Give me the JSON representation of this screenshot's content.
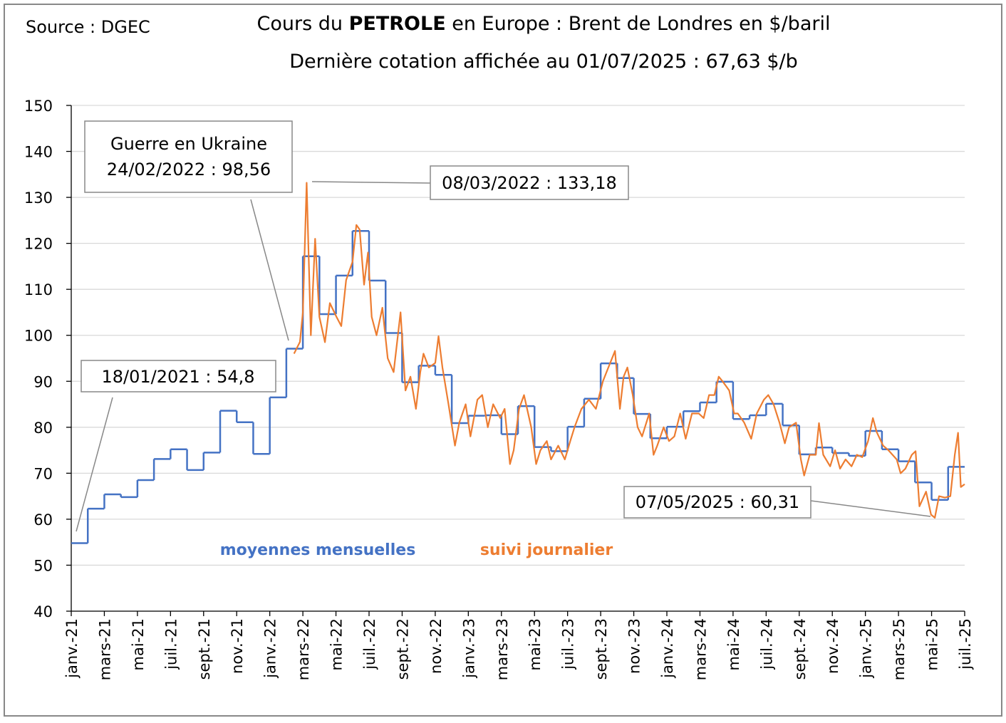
{
  "chart_data": {
    "type": "line",
    "source": "Source : DGEC",
    "title_parts": [
      "Cours du ",
      "PETROLE",
      " en Europe : Brent de Londres en $/baril"
    ],
    "subtitle": "Dernière cotation affichée au 01/07/2025 : 67,63 $/b",
    "xlim": [
      "2021-01",
      "2025-07"
    ],
    "xticks": [
      {
        "value": "2021-01",
        "label": "janv.-21"
      },
      {
        "value": "2021-03",
        "label": "mars-21"
      },
      {
        "value": "2021-05",
        "label": "mai-21"
      },
      {
        "value": "2021-07",
        "label": "juil.-21"
      },
      {
        "value": "2021-09",
        "label": "sept.-21"
      },
      {
        "value": "2021-11",
        "label": "nov.-21"
      },
      {
        "value": "2022-01",
        "label": "janv.-22"
      },
      {
        "value": "2022-03",
        "label": "mars-22"
      },
      {
        "value": "2022-05",
        "label": "mai-22"
      },
      {
        "value": "2022-07",
        "label": "juil.-22"
      },
      {
        "value": "2022-09",
        "label": "sept.-22"
      },
      {
        "value": "2022-11",
        "label": "nov.-22"
      },
      {
        "value": "2023-01",
        "label": "janv.-23"
      },
      {
        "value": "2023-03",
        "label": "mars-23"
      },
      {
        "value": "2023-05",
        "label": "mai-23"
      },
      {
        "value": "2023-07",
        "label": "juil.-23"
      },
      {
        "value": "2023-09",
        "label": "sept.-23"
      },
      {
        "value": "2023-11",
        "label": "nov.-23"
      },
      {
        "value": "2024-01",
        "label": "janv.-24"
      },
      {
        "value": "2024-03",
        "label": "mars-24"
      },
      {
        "value": "2024-05",
        "label": "mai-24"
      },
      {
        "value": "2024-07",
        "label": "juil.-24"
      },
      {
        "value": "2024-09",
        "label": "sept.-24"
      },
      {
        "value": "2024-11",
        "label": "nov.-24"
      },
      {
        "value": "2025-01",
        "label": "janv.-25"
      },
      {
        "value": "2025-03",
        "label": "mars-25"
      },
      {
        "value": "2025-05",
        "label": "mai-25"
      },
      {
        "value": "2025-07",
        "label": "juil.-25"
      }
    ],
    "ylim": [
      40,
      150
    ],
    "yticks": [
      40,
      50,
      60,
      70,
      80,
      90,
      100,
      110,
      120,
      130,
      140,
      150
    ],
    "grid": true,
    "series": [
      {
        "name": "moyennes mensuelles",
        "color": "#4472c4",
        "step": true,
        "x": [
          "2021-01",
          "2021-02",
          "2021-03",
          "2021-04",
          "2021-05",
          "2021-06",
          "2021-07",
          "2021-08",
          "2021-09",
          "2021-10",
          "2021-11",
          "2021-12",
          "2022-01",
          "2022-02",
          "2022-03",
          "2022-04",
          "2022-05",
          "2022-06",
          "2022-07",
          "2022-08",
          "2022-09",
          "2022-10",
          "2022-11",
          "2022-12",
          "2023-01",
          "2023-02",
          "2023-03",
          "2023-04",
          "2023-05",
          "2023-06",
          "2023-07",
          "2023-08",
          "2023-09",
          "2023-10",
          "2023-11",
          "2023-12",
          "2024-01",
          "2024-02",
          "2024-03",
          "2024-04",
          "2024-05",
          "2024-06",
          "2024-07",
          "2024-08",
          "2024-09",
          "2024-10",
          "2024-11",
          "2024-12",
          "2025-01",
          "2025-02",
          "2025-03",
          "2025-04",
          "2025-05",
          "2025-06"
        ],
        "values": [
          54.8,
          62.3,
          65.4,
          64.8,
          68.5,
          73.1,
          75.2,
          70.7,
          74.5,
          83.6,
          81.1,
          74.2,
          86.5,
          97.1,
          117.2,
          104.6,
          113.0,
          122.7,
          111.9,
          100.5,
          89.8,
          93.4,
          91.4,
          80.9,
          82.5,
          82.6,
          78.5,
          84.6,
          75.7,
          74.8,
          80.1,
          86.2,
          93.9,
          90.7,
          82.9,
          77.6,
          80.1,
          83.5,
          85.4,
          89.9,
          81.8,
          82.6,
          85.1,
          80.4,
          74.1,
          75.6,
          74.4,
          73.8,
          79.2,
          75.2,
          72.6,
          68.0,
          64.2,
          71.4
        ]
      },
      {
        "name": "suivi journalier",
        "color": "#ed7d31",
        "step": false,
        "x": [
          "2022-02-14",
          "2022-02-24",
          "2022-03-01",
          "2022-03-08",
          "2022-03-16",
          "2022-03-24",
          "2022-04-01",
          "2022-04-11",
          "2022-04-20",
          "2022-05-02",
          "2022-05-11",
          "2022-05-20",
          "2022-06-01",
          "2022-06-08",
          "2022-06-14",
          "2022-06-22",
          "2022-06-29",
          "2022-07-06",
          "2022-07-15",
          "2022-07-26",
          "2022-08-05",
          "2022-08-16",
          "2022-08-29",
          "2022-09-07",
          "2022-09-16",
          "2022-09-26",
          "2022-10-04",
          "2022-10-10",
          "2022-10-20",
          "2022-11-01",
          "2022-11-07",
          "2022-11-14",
          "2022-11-25",
          "2022-12-07",
          "2022-12-15",
          "2022-12-27",
          "2023-01-05",
          "2023-01-18",
          "2023-01-27",
          "2023-02-06",
          "2023-02-15",
          "2023-02-27",
          "2023-03-07",
          "2023-03-17",
          "2023-03-24",
          "2023-04-03",
          "2023-04-12",
          "2023-04-25",
          "2023-05-04",
          "2023-05-12",
          "2023-05-24",
          "2023-06-01",
          "2023-06-14",
          "2023-06-26",
          "2023-07-06",
          "2023-07-14",
          "2023-07-27",
          "2023-08-10",
          "2023-08-23",
          "2023-09-05",
          "2023-09-15",
          "2023-09-27",
          "2023-10-06",
          "2023-10-13",
          "2023-10-20",
          "2023-10-30",
          "2023-11-08",
          "2023-11-16",
          "2023-11-29",
          "2023-12-07",
          "2023-12-14",
          "2023-12-26",
          "2024-01-05",
          "2024-01-15",
          "2024-01-26",
          "2024-02-05",
          "2024-02-16",
          "2024-02-28",
          "2024-03-08",
          "2024-03-18",
          "2024-03-28",
          "2024-04-05",
          "2024-04-12",
          "2024-04-24",
          "2024-05-03",
          "2024-05-10",
          "2024-05-22",
          "2024-06-04",
          "2024-06-14",
          "2024-06-27",
          "2024-07-05",
          "2024-07-15",
          "2024-07-26",
          "2024-08-05",
          "2024-08-13",
          "2024-08-26",
          "2024-09-04",
          "2024-09-10",
          "2024-09-20",
          "2024-10-01",
          "2024-10-07",
          "2024-10-15",
          "2024-10-28",
          "2024-11-06",
          "2024-11-15",
          "2024-11-25",
          "2024-12-06",
          "2024-12-16",
          "2024-12-26",
          "2025-01-06",
          "2025-01-15",
          "2025-01-22",
          "2025-02-03",
          "2025-02-12",
          "2025-02-26",
          "2025-03-05",
          "2025-03-14",
          "2025-03-26",
          "2025-04-02",
          "2025-04-09",
          "2025-04-21",
          "2025-04-30",
          "2025-05-07",
          "2025-05-15",
          "2025-05-26",
          "2025-06-05",
          "2025-06-13",
          "2025-06-19",
          "2025-06-24",
          "2025-07-01"
        ],
        "values": [
          96,
          98.56,
          105,
          133.18,
          100,
          121,
          104,
          98.5,
          107,
          104,
          102,
          112,
          116,
          124,
          123,
          111,
          118,
          104,
          100,
          106,
          95,
          92,
          105,
          88,
          91,
          84,
          92,
          96,
          93,
          94,
          99.8,
          93,
          85,
          76,
          81,
          85,
          78,
          86,
          87,
          80,
          85,
          82,
          84,
          72,
          75,
          84,
          87,
          80,
          72,
          75,
          77,
          73,
          76,
          73,
          77,
          80,
          84,
          86,
          84,
          90,
          93,
          96.6,
          84,
          91,
          93,
          87,
          80,
          78,
          83,
          74,
          76,
          80,
          77,
          78,
          83,
          77.5,
          83,
          83,
          82,
          87,
          87,
          91,
          90,
          88,
          83,
          83,
          81,
          77.5,
          83,
          86,
          87,
          85,
          81,
          76.5,
          80,
          81,
          73,
          69.5,
          74,
          74,
          80.9,
          74,
          71.5,
          75,
          71,
          73,
          71.5,
          74,
          73.5,
          77,
          82,
          79,
          76,
          75,
          73,
          70,
          71,
          74,
          74.8,
          62.8,
          66,
          61,
          60.31,
          65,
          64.7,
          65,
          74,
          78.8,
          67,
          67.63
        ]
      }
    ],
    "annotations": [
      {
        "lines": [
          "Guerre en Ukraine",
          "24/02/2022 : 98,56"
        ]
      },
      {
        "lines": [
          "08/03/2022 : 133,18"
        ]
      },
      {
        "lines": [
          "18/01/2021 : 54,8"
        ]
      },
      {
        "lines": [
          "07/05/2025 : 60,31"
        ]
      }
    ]
  }
}
